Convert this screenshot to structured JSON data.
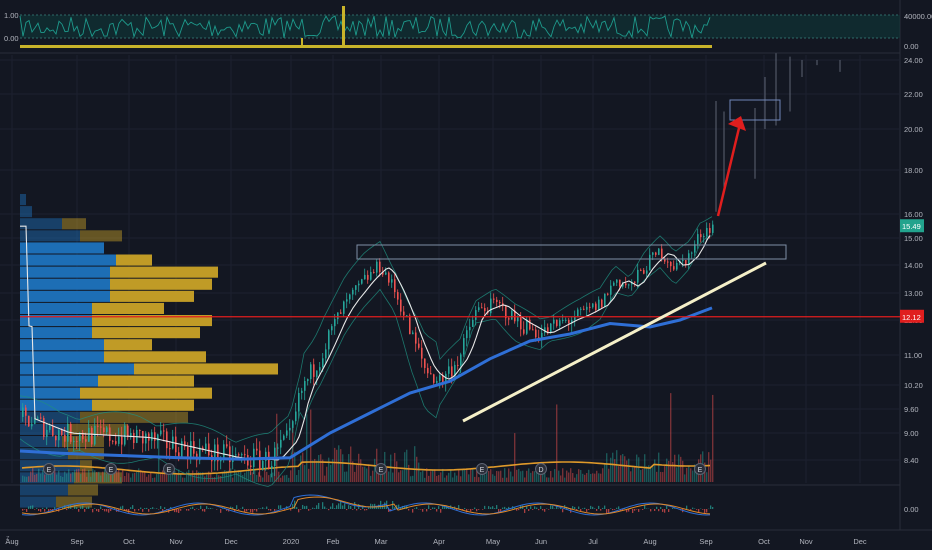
{
  "chart_data": [
    {
      "type": "line",
      "panel": "top-oscillator",
      "y_ticks_left": [
        "1.00",
        "0.00"
      ],
      "y_ticks_right": [
        "40000.00",
        "0.00"
      ],
      "colors": {
        "line": "#1e9a8c",
        "band": "#0f3b3a",
        "bar": "#c8b32a"
      }
    },
    {
      "type": "bar",
      "panel": "price",
      "price_axis": [
        8.4,
        9.0,
        9.6,
        10.2,
        11.0,
        12.0,
        13.0,
        14.0,
        15.0,
        16.0,
        18.0,
        20.0,
        22.0,
        24.0
      ],
      "y_tick_labels": [
        "24.00",
        "22.00",
        "20.00",
        "18.00",
        "16.00",
        "15.00",
        "14.00",
        "13.00",
        "12.00",
        "11.00",
        "10.20",
        "9.60",
        "9.00",
        "8.40"
      ],
      "x_tick_labels": [
        "Aug",
        "Sep",
        "Oct",
        "Nov",
        "Dec",
        "2020",
        "Feb",
        "Mar",
        "Apr",
        "May",
        "Jun",
        "Jul",
        "Aug",
        "Sep",
        "Oct",
        "Nov",
        "Dec"
      ],
      "current_price_label": "15.49",
      "current_price": 15.49,
      "horizontal_line_label": "12.12",
      "horizontal_line": 12.12,
      "earnings_markers": [
        "E",
        "E",
        "E",
        "E",
        "D",
        "E"
      ],
      "colors": {
        "ma_fast": "#e8e8e8",
        "ma_slow": "#2f6fd6",
        "trendline": "#f5f0c8",
        "hline": "#e01e1e",
        "arrow": "#e01e1e",
        "up": "#26a69a",
        "down": "#ef5350",
        "vp_blue": "#1e73be",
        "vp_gold": "#c9a227",
        "volume_ma": "#e09a2a"
      }
    },
    {
      "type": "line",
      "panel": "macd",
      "y_ticks_right": [
        "0.00"
      ],
      "colors": {
        "macd": "#2f6fd6",
        "signal": "#e0892a"
      }
    }
  ]
}
